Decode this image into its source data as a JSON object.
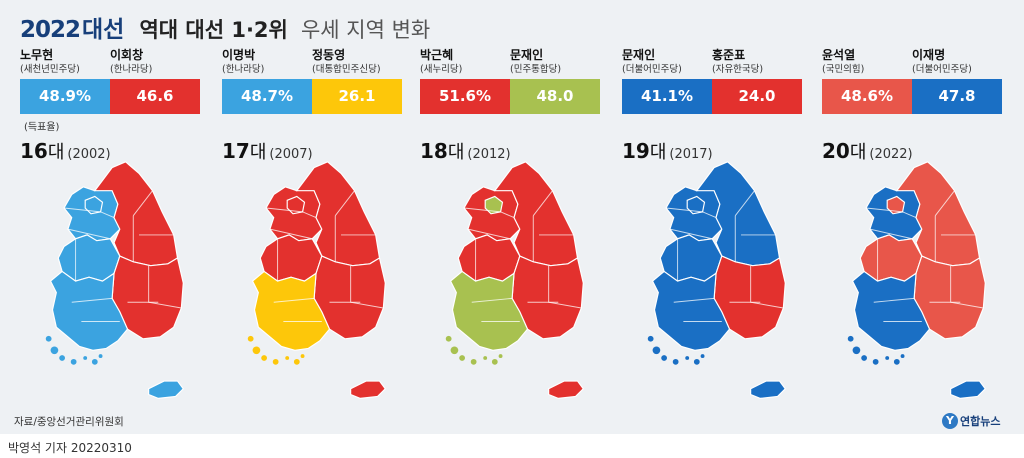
{
  "title": {
    "year": "2022",
    "daeseon": "대선",
    "main": "역대 대선 1·2위",
    "sub": "우세 지역 변화"
  },
  "note": "(득표율)",
  "colors": {
    "blue": "#2e86cf",
    "blue_light": "#3ba3e0",
    "red": "#e3312e",
    "red_light": "#e8564a",
    "yellow": "#fdc70a",
    "green": "#a8c150",
    "region_dark_blue": "#1a63b5"
  },
  "elections": [
    {
      "num": "16",
      "dae": "대",
      "year": "(2002)",
      "first": {
        "name": "노무현",
        "party": "(새천년민주당)",
        "pct": "48.9%",
        "share": 48.9,
        "color": "#3ba3e0"
      },
      "second": {
        "name": "이회창",
        "party": "(한나라당)",
        "pct": "46.6",
        "share": 46.6,
        "color": "#e3312e"
      },
      "regions": {
        "northwest": "#3ba3e0",
        "seoul": "#3ba3e0",
        "east": "#e3312e",
        "central_west": "#3ba3e0",
        "southeast": "#e3312e",
        "southwest": "#3ba3e0",
        "jeju": "#3ba3e0"
      }
    },
    {
      "num": "17",
      "dae": "대",
      "year": "(2007)",
      "first": {
        "name": "이명박",
        "party": "(한나라당)",
        "pct": "48.7%",
        "share": 48.7,
        "color": "#3ba3e0"
      },
      "second": {
        "name": "정동영",
        "party": "(대통합민주신당)",
        "pct": "26.1",
        "share": 26.1,
        "color": "#fdc70a"
      },
      "regions": {
        "northwest": "#e3312e",
        "seoul": "#e3312e",
        "east": "#e3312e",
        "central_west": "#e3312e",
        "southeast": "#e3312e",
        "southwest": "#fdc70a",
        "jeju": "#e3312e"
      }
    },
    {
      "num": "18",
      "dae": "대",
      "year": "(2012)",
      "first": {
        "name": "박근혜",
        "party": "(새누리당)",
        "pct": "51.6%",
        "share": 51.6,
        "color": "#e3312e"
      },
      "second": {
        "name": "문재인",
        "party": "(민주통합당)",
        "pct": "48.0",
        "share": 48.0,
        "color": "#a8c150"
      },
      "regions": {
        "northwest": "#e3312e",
        "seoul": "#a8c150",
        "east": "#e3312e",
        "central_west": "#e3312e",
        "southeast": "#e3312e",
        "southwest": "#a8c150",
        "jeju": "#e3312e"
      }
    },
    {
      "num": "19",
      "dae": "대",
      "year": "(2017)",
      "first": {
        "name": "문재인",
        "party": "(더불어민주당)",
        "pct": "41.1%",
        "share": 41.1,
        "color": "#1a6fc4"
      },
      "second": {
        "name": "홍준표",
        "party": "(자유한국당)",
        "pct": "24.0",
        "share": 24.0,
        "color": "#e3312e"
      },
      "regions": {
        "northwest": "#1a6fc4",
        "seoul": "#1a6fc4",
        "east": "#1a6fc4",
        "central_west": "#1a6fc4",
        "southeast": "#e3312e",
        "southwest": "#1a6fc4",
        "jeju": "#1a6fc4"
      }
    },
    {
      "num": "20",
      "dae": "대",
      "year": "(2022)",
      "first": {
        "name": "윤석열",
        "party": "(국민의힘)",
        "pct": "48.6%",
        "share": 48.6,
        "color": "#e8564a"
      },
      "second": {
        "name": "이재명",
        "party": "(더불어민주당)",
        "pct": "47.8",
        "share": 47.8,
        "color": "#1a6fc4"
      },
      "regions": {
        "northwest": "#1a6fc4",
        "seoul": "#e8564a",
        "east": "#e8564a",
        "central_west": "#e8564a",
        "southeast": "#e8564a",
        "southwest": "#1a6fc4",
        "jeju": "#1a6fc4"
      }
    }
  ],
  "source": "자료/중앙선거관리위원회",
  "logo": {
    "icon": "Y",
    "text": "연합뉴스"
  },
  "credit": "박영석 기자  20220310"
}
